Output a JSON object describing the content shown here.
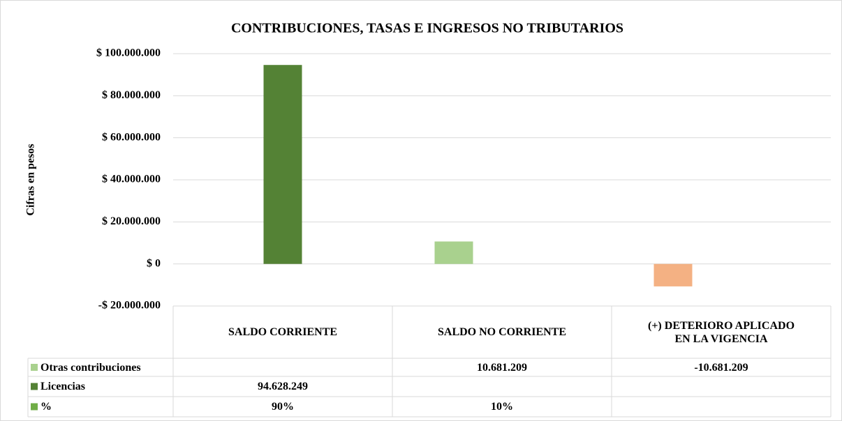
{
  "chart_data": {
    "type": "bar",
    "title": "CONTRIBUCIONES, TASAS E INGRESOS NO TRIBUTARIOS",
    "y_label": "Cifras en pesos",
    "categories": [
      "SALDO CORRIENTE",
      "SALDO NO CORRIENTE",
      "(+) DETERIORO APLICADO EN LA VIGENCIA"
    ],
    "series": [
      {
        "name": "Otras contribuciones",
        "color": "#a9d18e",
        "negative_color": "#f4b183",
        "values": [
          null,
          10681209,
          -10681209
        ],
        "value_labels": [
          null,
          "10.681.209",
          "-10.681.209"
        ]
      },
      {
        "name": "Licencias",
        "color": "#548235",
        "values": [
          94628249,
          null,
          null
        ],
        "value_labels": [
          "94.628.249",
          null,
          null
        ]
      },
      {
        "name": "%",
        "color": "#70ad47",
        "values": [
          90,
          10,
          null
        ],
        "value_labels": [
          "90%",
          "10%",
          null
        ]
      }
    ],
    "ylim": [
      -20000000,
      100000000
    ],
    "yticks": [
      {
        "value": -20000000,
        "label": "-$ 20.000.000"
      },
      {
        "value": 0,
        "label": "$ 0"
      },
      {
        "value": 20000000,
        "label": "$ 20.000.000"
      },
      {
        "value": 40000000,
        "label": "$ 40.000.000"
      },
      {
        "value": 60000000,
        "label": "$ 60.000.000"
      },
      {
        "value": 80000000,
        "label": "$ 80.000.000"
      },
      {
        "value": 100000000,
        "label": "$ 100.000.000"
      }
    ],
    "grid": true,
    "data_table": true
  }
}
